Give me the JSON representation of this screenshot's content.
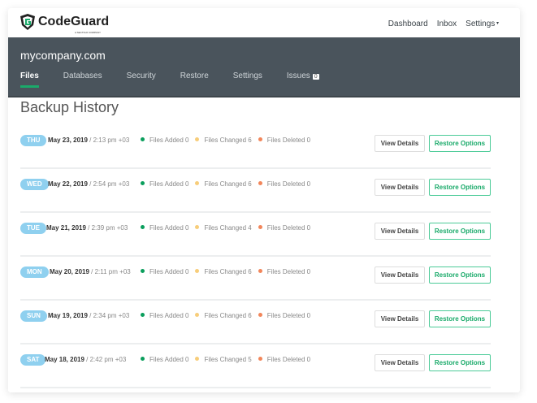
{
  "header": {
    "logo": "CodeGuard",
    "logo_tagline": "A SECTIGO COMPANY",
    "nav": [
      "Dashboard",
      "Inbox",
      "Settings"
    ]
  },
  "site": {
    "name": "mycompany.com",
    "tabs": [
      "Files",
      "Databases",
      "Security",
      "Restore",
      "Settings",
      "Issues"
    ],
    "issues_count": "0"
  },
  "page": {
    "title": "Backup History"
  },
  "colors": {
    "added": "#0a9e5c",
    "changed": "#f7cd7a",
    "deleted": "#f2865a",
    "accent": "#1aaa6a"
  },
  "labels": {
    "view": "View Details",
    "restore": "Restore Options"
  },
  "backups": [
    {
      "day": "THU",
      "date": "May 23, 2019",
      "time": " / 2:13 pm +03",
      "added": "Files Added 0",
      "changed": "Files Changed 6",
      "deleted": "Files Deleted 0"
    },
    {
      "day": "WED",
      "date": "May 22, 2019",
      "time": " / 2:54 pm +03",
      "added": "Files Added 0",
      "changed": "Files Changed 6",
      "deleted": "Files Deleted 0"
    },
    {
      "day": "TUE",
      "date": "May 21, 2019",
      "time": " / 2:39 pm +03",
      "added": "Files Added 0",
      "changed": "Files Changed 4",
      "deleted": "Files Deleted 0"
    },
    {
      "day": "MON",
      "date": "May 20, 2019",
      "time": " / 2:11 pm +03",
      "added": "Files Added 0",
      "changed": "Files Changed 6",
      "deleted": "Files Deleted 0"
    },
    {
      "day": "SUN",
      "date": "May 19, 2019",
      "time": " / 2:34 pm +03",
      "added": "Files Added 0",
      "changed": "Files Changed 6",
      "deleted": "Files Deleted 0"
    },
    {
      "day": "SAT",
      "date": "May 18, 2019",
      "time": " / 2:42 pm +03",
      "added": "Files Added 0",
      "changed": "Files Changed 5",
      "deleted": "Files Deleted 0"
    }
  ]
}
